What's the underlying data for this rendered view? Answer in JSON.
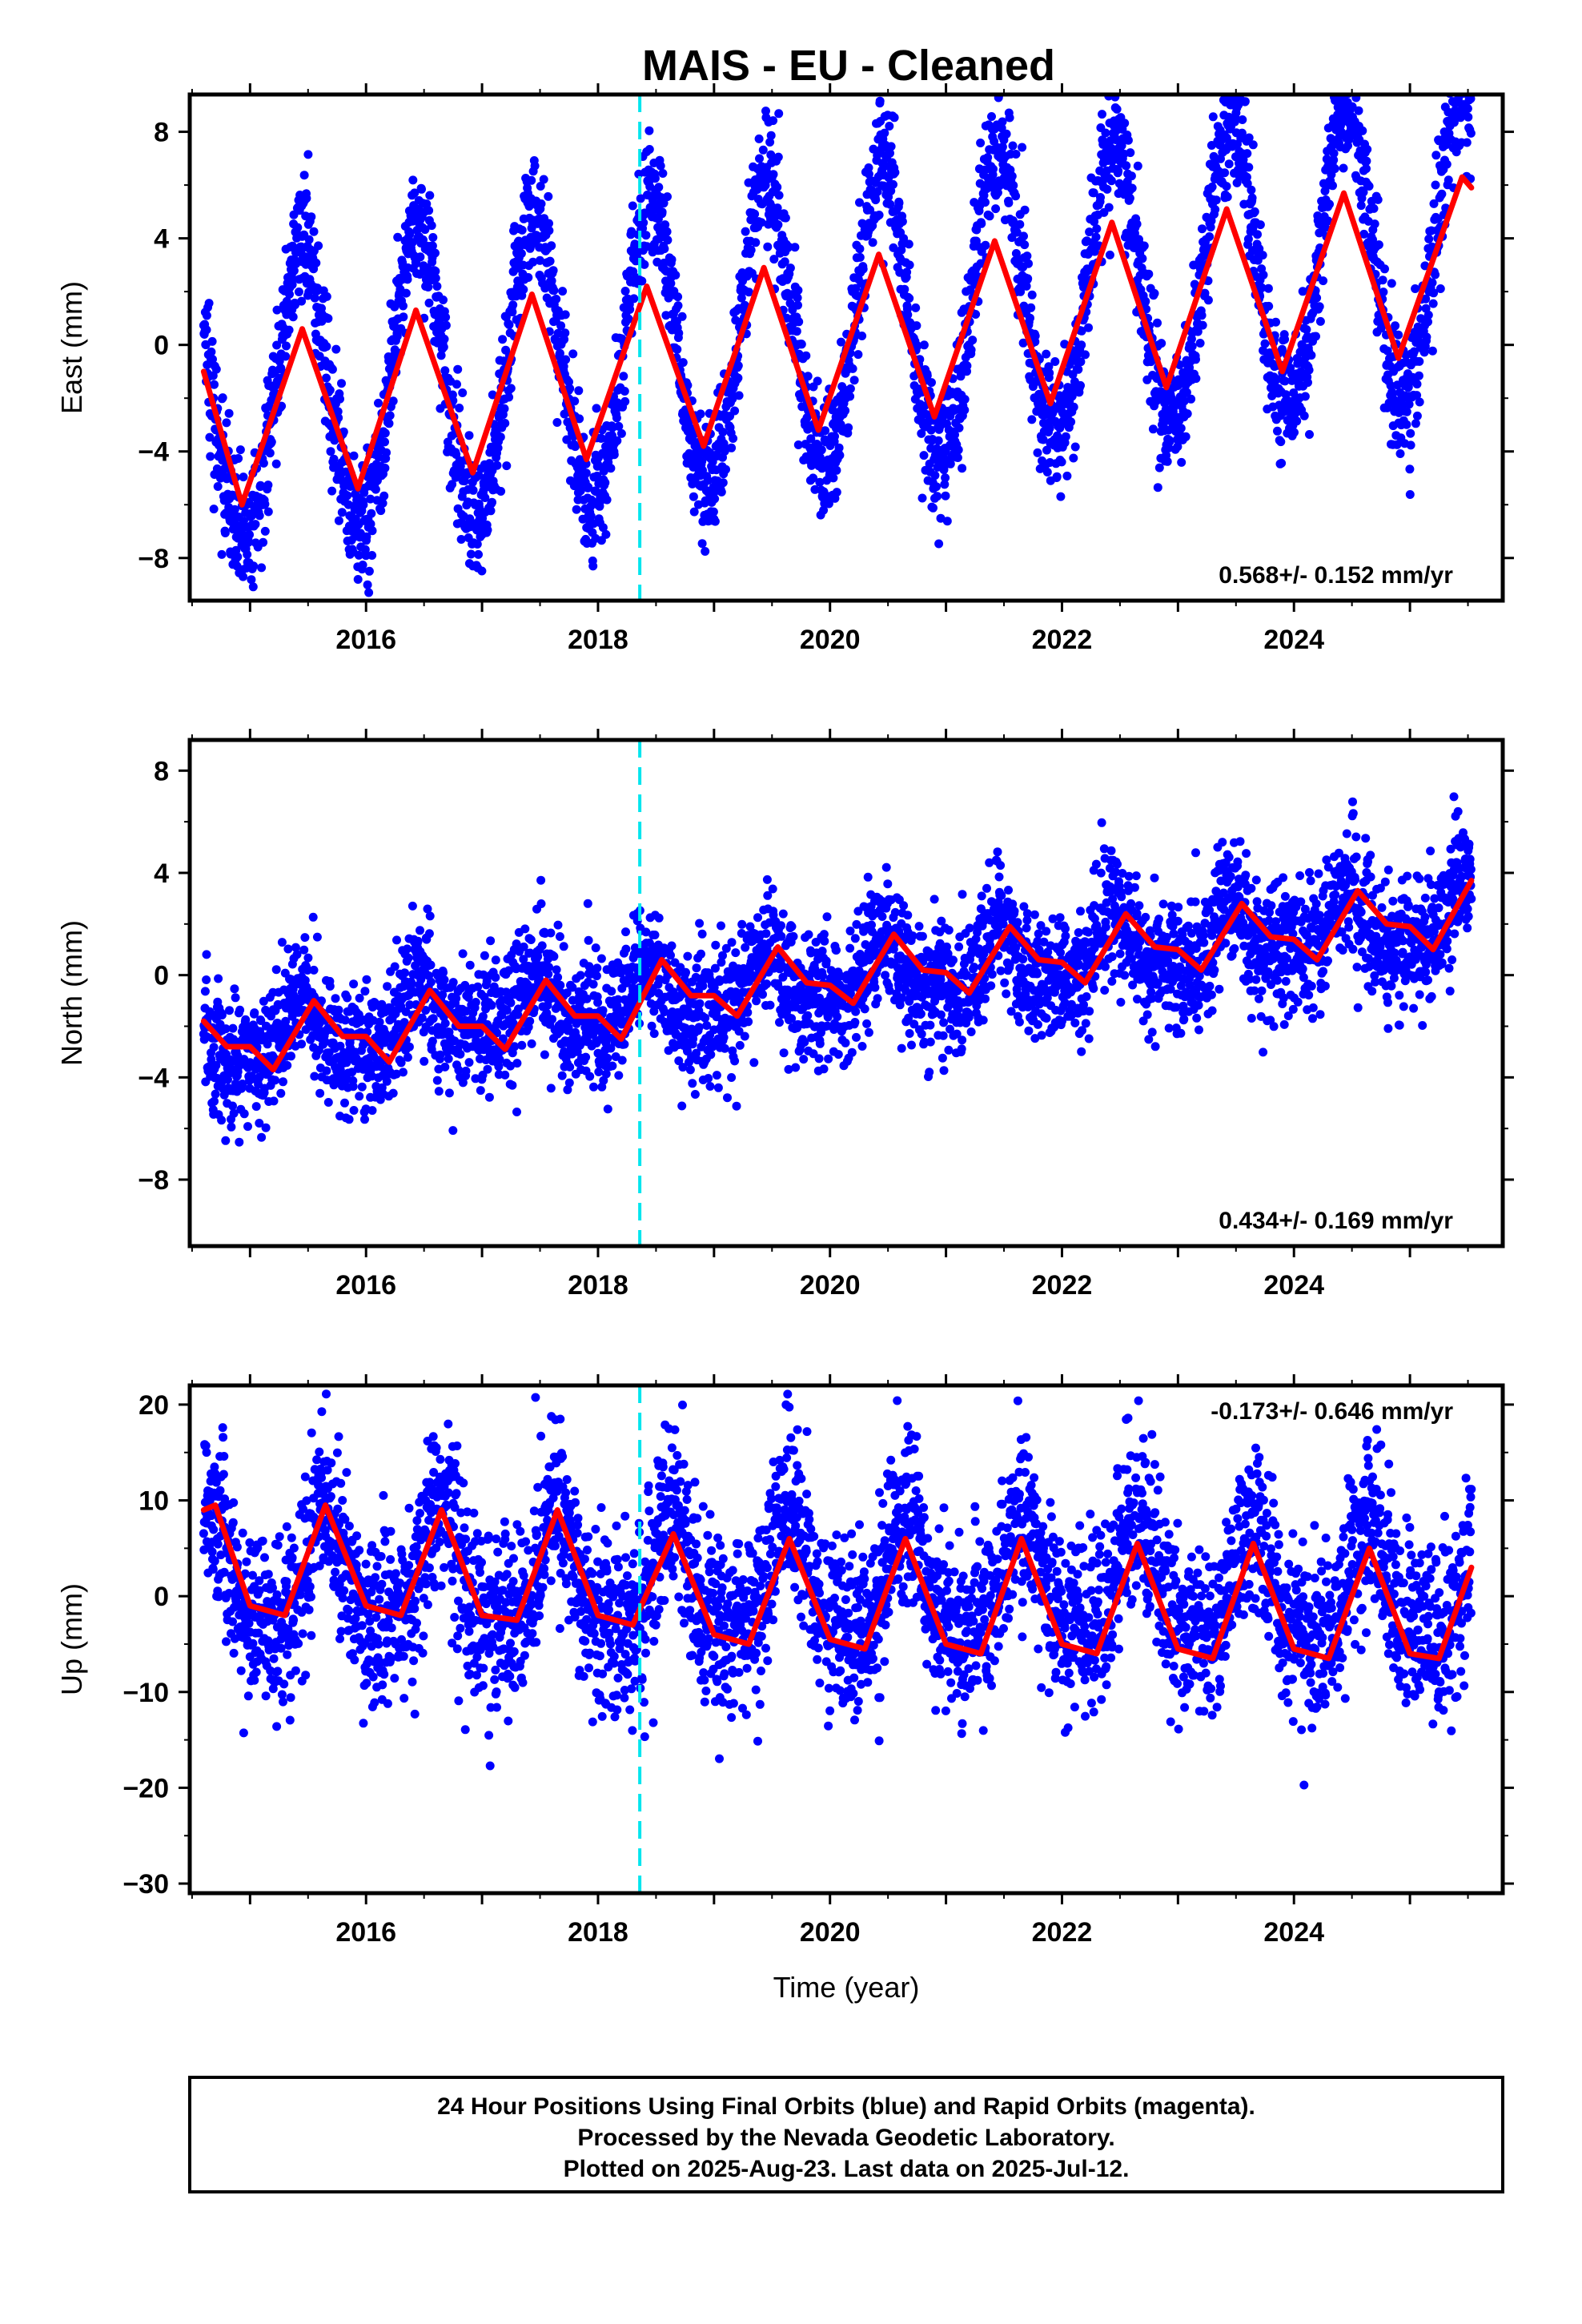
{
  "title": "MAIS  - EU - Cleaned",
  "footer": {
    "lines": [
      "24 Hour Positions Using Final Orbits (blue) and Rapid Orbits (magenta).",
      "Processed by the Nevada Geodetic Laboratory.",
      "Plotted on 2025-Aug-23. Last data on 2025-Jul-12."
    ]
  },
  "colors": {
    "points": "#0000ff",
    "fit": "#ff0000",
    "event_line": "#00e5ee",
    "frame": "#000000"
  },
  "chart_data": [
    {
      "type": "scatter",
      "name": "east",
      "ylabel": "East (mm)",
      "xlabel": "",
      "xlim": [
        2014.48,
        2025.8
      ],
      "ylim": [
        -9.6,
        9.4
      ],
      "xticks": [
        2016,
        2018,
        2020,
        2022,
        2024
      ],
      "yticks": [
        -8,
        -4,
        0,
        4,
        8
      ],
      "ytick_labels": [
        "−8",
        "−4",
        "0",
        "4",
        "8"
      ],
      "rate_label": "0.568+/- 0.152 mm/yr",
      "rate_position": "bottom-right",
      "event_line_x": 2018.36,
      "data_range": [
        2014.6,
        2025.53
      ],
      "model": {
        "offset": -2.4,
        "trend": 0.568,
        "t0": 2014.6,
        "annual_amp": 5.5,
        "annual_peak": 2014.45,
        "semiannual_amp": 0.3,
        "noise_sd": 1.2
      },
      "fit_points": [
        [
          2014.6,
          -1.0
        ],
        [
          2014.93,
          -6.0
        ],
        [
          2015.45,
          0.6
        ],
        [
          2015.93,
          -5.4
        ],
        [
          2016.43,
          1.3
        ],
        [
          2016.92,
          -4.8
        ],
        [
          2017.43,
          1.9
        ],
        [
          2017.9,
          -4.3
        ],
        [
          2018.42,
          2.2
        ],
        [
          2018.91,
          -3.8
        ],
        [
          2019.43,
          2.9
        ],
        [
          2019.9,
          -3.2
        ],
        [
          2020.42,
          3.4
        ],
        [
          2020.9,
          -2.7
        ],
        [
          2021.42,
          3.9
        ],
        [
          2021.9,
          -2.2
        ],
        [
          2022.43,
          4.6
        ],
        [
          2022.9,
          -1.6
        ],
        [
          2023.42,
          5.1
        ],
        [
          2023.9,
          -1.0
        ],
        [
          2024.43,
          5.7
        ],
        [
          2024.9,
          -0.5
        ],
        [
          2025.45,
          6.3
        ],
        [
          2025.53,
          5.9
        ]
      ]
    },
    {
      "type": "scatter",
      "name": "north",
      "ylabel": "North (mm)",
      "xlabel": "",
      "xlim": [
        2014.48,
        2025.8
      ],
      "ylim": [
        -10.6,
        9.2
      ],
      "xticks": [
        2016,
        2018,
        2020,
        2022,
        2024
      ],
      "yticks": [
        -8,
        -4,
        0,
        4,
        8
      ],
      "ytick_labels": [
        "−8",
        "−4",
        "0",
        "4",
        "8"
      ],
      "rate_label": "0.434+/- 0.169 mm/yr",
      "rate_position": "bottom-right",
      "event_line_x": 2018.36,
      "data_range": [
        2014.6,
        2025.53
      ],
      "model": {
        "offset": -2.6,
        "trend": 0.434,
        "t0": 2014.6,
        "annual_amp": 1.1,
        "annual_peak": 2014.45,
        "semiannual_amp": 0.5,
        "noise_sd": 1.25
      },
      "fit_points": [
        [
          2014.6,
          -1.8
        ],
        [
          2014.8,
          -2.8
        ],
        [
          2015.0,
          -2.8
        ],
        [
          2015.2,
          -3.7
        ],
        [
          2015.55,
          -1.0
        ],
        [
          2015.8,
          -2.4
        ],
        [
          2016.0,
          -2.4
        ],
        [
          2016.2,
          -3.4
        ],
        [
          2016.55,
          -0.6
        ],
        [
          2016.8,
          -2.0
        ],
        [
          2017.0,
          -2.0
        ],
        [
          2017.2,
          -2.9
        ],
        [
          2017.55,
          -0.2
        ],
        [
          2017.8,
          -1.6
        ],
        [
          2018.0,
          -1.6
        ],
        [
          2018.2,
          -2.5
        ],
        [
          2018.55,
          0.6
        ],
        [
          2018.8,
          -0.8
        ],
        [
          2019.0,
          -0.8
        ],
        [
          2019.2,
          -1.6
        ],
        [
          2019.55,
          1.1
        ],
        [
          2019.8,
          -0.3
        ],
        [
          2020.0,
          -0.4
        ],
        [
          2020.2,
          -1.1
        ],
        [
          2020.55,
          1.6
        ],
        [
          2020.8,
          0.2
        ],
        [
          2021.0,
          0.1
        ],
        [
          2021.2,
          -0.7
        ],
        [
          2021.55,
          1.9
        ],
        [
          2021.8,
          0.6
        ],
        [
          2022.0,
          0.5
        ],
        [
          2022.2,
          -0.3
        ],
        [
          2022.55,
          2.4
        ],
        [
          2022.8,
          1.1
        ],
        [
          2023.0,
          1.0
        ],
        [
          2023.2,
          0.2
        ],
        [
          2023.55,
          2.8
        ],
        [
          2023.8,
          1.5
        ],
        [
          2024.0,
          1.4
        ],
        [
          2024.2,
          0.6
        ],
        [
          2024.55,
          3.3
        ],
        [
          2024.8,
          2.0
        ],
        [
          2025.0,
          1.9
        ],
        [
          2025.2,
          1.0
        ],
        [
          2025.53,
          3.7
        ]
      ]
    },
    {
      "type": "scatter",
      "name": "up",
      "ylabel": "Up (mm)",
      "xlabel": "Time (year)",
      "xlim": [
        2014.48,
        2025.8
      ],
      "ylim": [
        -31,
        22
      ],
      "xticks": [
        2016,
        2018,
        2020,
        2022,
        2024
      ],
      "yticks": [
        -30,
        -20,
        -10,
        0,
        10,
        20
      ],
      "ytick_labels": [
        "−30",
        "−20",
        "−10",
        "0",
        "10",
        "20"
      ],
      "rate_label": "-0.173+/- 0.646 mm/yr",
      "rate_position": "top-right",
      "event_line_x": 2018.36,
      "data_range": [
        2014.6,
        2025.53
      ],
      "model": {
        "offset": 2.0,
        "trend": -0.173,
        "t0": 2014.6,
        "annual_amp": 6.0,
        "annual_peak": 2014.65,
        "semiannual_amp": 2.0,
        "noise_sd": 4.5
      },
      "fit_points": [
        [
          2014.6,
          9.0
        ],
        [
          2014.7,
          9.5
        ],
        [
          2015.0,
          -1.0
        ],
        [
          2015.3,
          -2.0
        ],
        [
          2015.65,
          9.5
        ],
        [
          2016.0,
          -1.0
        ],
        [
          2016.3,
          -2.0
        ],
        [
          2016.65,
          9.0
        ],
        [
          2017.0,
          -2.0
        ],
        [
          2017.3,
          -2.5
        ],
        [
          2017.65,
          9.0
        ],
        [
          2018.0,
          -2.0
        ],
        [
          2018.3,
          -3.0
        ],
        [
          2018.65,
          6.5
        ],
        [
          2019.0,
          -4.0
        ],
        [
          2019.3,
          -5.0
        ],
        [
          2019.65,
          6.0
        ],
        [
          2020.0,
          -4.5
        ],
        [
          2020.3,
          -5.5
        ],
        [
          2020.65,
          6.0
        ],
        [
          2021.0,
          -5.0
        ],
        [
          2021.3,
          -6.0
        ],
        [
          2021.65,
          6.0
        ],
        [
          2022.0,
          -5.0
        ],
        [
          2022.3,
          -6.0
        ],
        [
          2022.65,
          5.5
        ],
        [
          2023.0,
          -5.5
        ],
        [
          2023.3,
          -6.5
        ],
        [
          2023.65,
          5.5
        ],
        [
          2024.0,
          -5.5
        ],
        [
          2024.3,
          -6.5
        ],
        [
          2024.65,
          5.0
        ],
        [
          2025.0,
          -6.0
        ],
        [
          2025.25,
          -6.5
        ],
        [
          2025.53,
          3.0
        ]
      ]
    }
  ]
}
